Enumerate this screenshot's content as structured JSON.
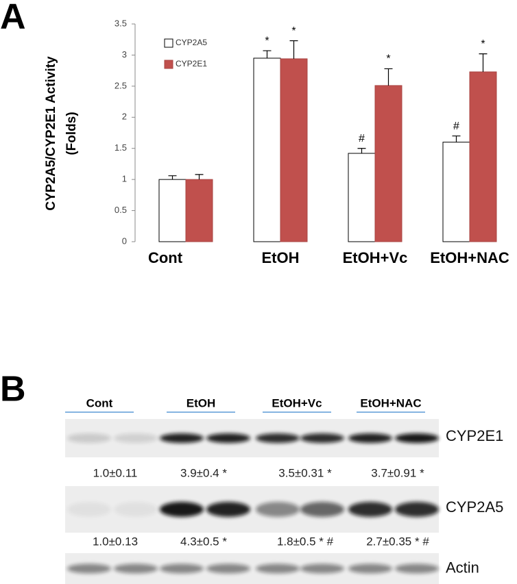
{
  "chart_data": {
    "type": "bar",
    "panel": "A",
    "ylabel": [
      "CYP2A5/CYP2E1 Activity",
      "(Folds)"
    ],
    "categories": [
      "Cont",
      "EtOH",
      "EtOH+Vc",
      "EtOH+NAC"
    ],
    "series": [
      {
        "name": "CYP2A5",
        "color": "#ffffff",
        "values": [
          1.0,
          2.95,
          1.42,
          1.6
        ],
        "errors": [
          0.06,
          0.12,
          0.08,
          0.1
        ],
        "markers": [
          null,
          "*",
          "#",
          "#"
        ]
      },
      {
        "name": "CYP2E1",
        "color": "#c0504d",
        "values": [
          1.0,
          2.94,
          2.51,
          2.73
        ],
        "errors": [
          0.08,
          0.29,
          0.27,
          0.29
        ],
        "markers": [
          null,
          "*",
          "*",
          "*"
        ]
      }
    ],
    "ylim": [
      0,
      3.5
    ],
    "yticks": [
      0,
      0.5,
      1,
      1.5,
      2,
      2.5,
      3,
      3.5
    ],
    "grid": false,
    "legend": "top-left"
  },
  "blot": {
    "panel": "B",
    "groups": [
      "Cont",
      "EtOH",
      "EtOH+Vc",
      "EtOH+NAC"
    ],
    "rows": [
      {
        "label": "CYP2E1",
        "quant": [
          "1.0±0.11",
          "3.9±0.4 *",
          "3.5±0.31 *",
          "3.7±0.91 *"
        ]
      },
      {
        "label": "CYP2A5",
        "quant": [
          "1.0±0.13",
          "4.3±0.5 *",
          "1.8±0.5 * #",
          "2.7±0.35 * #"
        ]
      },
      {
        "label": "Actin"
      }
    ]
  }
}
